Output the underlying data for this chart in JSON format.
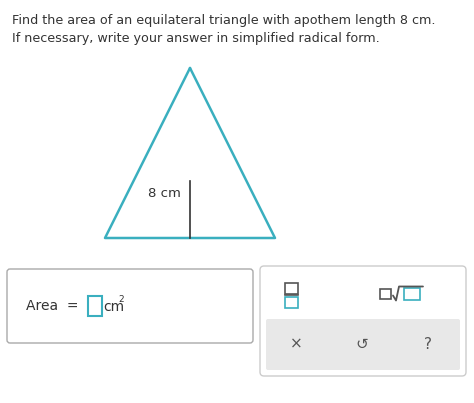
{
  "title_line1": "Find the area of an equilateral triangle with apothem length 8 cm.",
  "title_line2": "If necessary, write your answer in simplified radical form.",
  "triangle_color": "#3AAFBF",
  "triangle_linewidth": 1.8,
  "apothem_label": "8 cm",
  "bg_color": "#ffffff",
  "text_color": "#333333",
  "box_edge_color": "#aaaaaa",
  "input_box_color": "#3AAFBF",
  "fraction_color": "#555555",
  "fraction_teal": "#3AAFBF",
  "toolbar_bg": "#ffffff",
  "toolbar_border": "#cccccc",
  "bottom_row_bg": "#e8e8e8",
  "title_fontsize": 9.2,
  "label_fontsize": 9.5,
  "area_fontsize": 10.0,
  "symbol_fontsize": 11.0
}
